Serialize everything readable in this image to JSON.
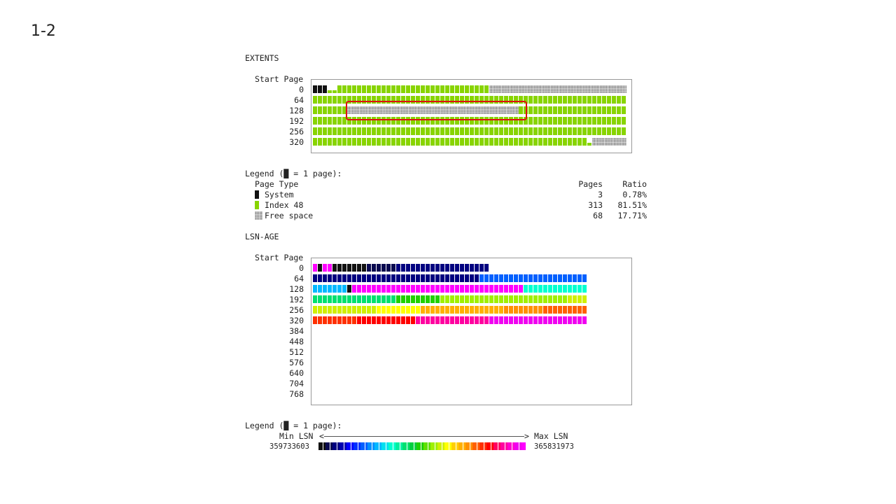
{
  "slide_number": "1-2",
  "colors": {
    "system": "#111111",
    "index": "#88d400",
    "highlight": "#e01010"
  },
  "extents": {
    "title": "EXTENTS",
    "start_page_header": "Start Page",
    "row_labels": [
      "0",
      "64",
      "128",
      "192",
      "256",
      "320"
    ],
    "legend_title": "Legend (█ = 1 page):",
    "table_headers": {
      "type": "Page Type",
      "pages": "Pages",
      "ratio": "Ratio"
    },
    "legend": [
      {
        "name": "System",
        "pages": "3",
        "ratio": "0.78%",
        "icon": "black-block-icon"
      },
      {
        "name": "Index 48",
        "pages": "313",
        "ratio": "81.51%",
        "icon": "green-block-icon"
      },
      {
        "name": "Free space",
        "pages": "68",
        "ratio": "17.71%",
        "icon": "dotted-block-icon"
      }
    ]
  },
  "lsn_age": {
    "title": "LSN-AGE",
    "start_page_header": "Start Page",
    "row_labels": [
      "0",
      "64",
      "128",
      "192",
      "256",
      "320",
      "384",
      "448",
      "512",
      "576",
      "640",
      "704",
      "768"
    ],
    "legend_title": "Legend (█ = 1 page):",
    "min_label": "Min LSN",
    "max_label": "Max LSN",
    "min_value": "359733603",
    "max_value": "365831973",
    "gradient": [
      "#111111",
      "#0a0a50",
      "#000080",
      "#0000b0",
      "#0000ff",
      "#0030ff",
      "#0060ff",
      "#0090ff",
      "#00b8ff",
      "#00e0f0",
      "#00ffd0",
      "#00f0a0",
      "#00e070",
      "#00d040",
      "#20d000",
      "#60e000",
      "#a0f000",
      "#d0f000",
      "#ffff00",
      "#ffd000",
      "#ffb000",
      "#ff9000",
      "#ff6000",
      "#ff3000",
      "#ff0000",
      "#ff0060",
      "#ff00a0",
      "#ff00d0",
      "#f000f0",
      "#ff00ff"
    ]
  }
}
